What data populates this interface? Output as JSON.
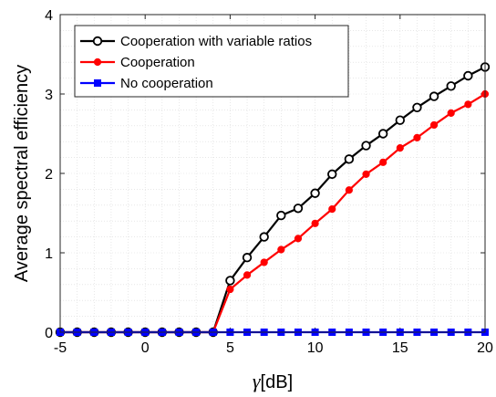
{
  "chart_data": {
    "type": "line",
    "xlabel_symbol": "γ",
    "xlabel_unit": "[dB]",
    "ylabel": "Average spectral efficiency",
    "xlim": [
      -5,
      20
    ],
    "ylim": [
      0,
      4
    ],
    "xticks": [
      -5,
      0,
      5,
      10,
      15,
      20
    ],
    "yticks": [
      0,
      1,
      2,
      3,
      4
    ],
    "grid": true,
    "legend_position": "top-left",
    "x": [
      -5,
      -4,
      -3,
      -2,
      -1,
      0,
      1,
      2,
      3,
      4,
      5,
      6,
      7,
      8,
      9,
      10,
      11,
      12,
      13,
      14,
      15,
      16,
      17,
      18,
      19,
      20
    ],
    "series": [
      {
        "name": "Cooperation with variable ratios",
        "color": "#000000",
        "marker": "open-circle",
        "values": [
          0,
          0,
          0,
          0,
          0,
          0,
          0,
          0,
          0,
          0,
          0.65,
          0.94,
          1.2,
          1.47,
          1.56,
          1.75,
          1.99,
          2.18,
          2.35,
          2.5,
          2.67,
          2.83,
          2.97,
          3.1,
          3.23,
          3.34
        ]
      },
      {
        "name": "Cooperation",
        "color": "#ff0000",
        "marker": "filled-circle",
        "values": [
          0,
          0,
          0,
          0,
          0,
          0,
          0,
          0,
          0,
          0,
          0.54,
          0.72,
          0.88,
          1.04,
          1.18,
          1.37,
          1.55,
          1.79,
          1.99,
          2.14,
          2.32,
          2.45,
          2.61,
          2.76,
          2.87,
          3.0
        ]
      },
      {
        "name": "No cooperation",
        "color": "#0000ff",
        "marker": "square",
        "values": [
          0,
          0,
          0,
          0,
          0,
          0,
          0,
          0,
          0,
          0,
          0,
          0,
          0,
          0,
          0,
          0,
          0,
          0,
          0,
          0,
          0,
          0,
          0,
          0,
          0,
          0
        ]
      }
    ]
  }
}
